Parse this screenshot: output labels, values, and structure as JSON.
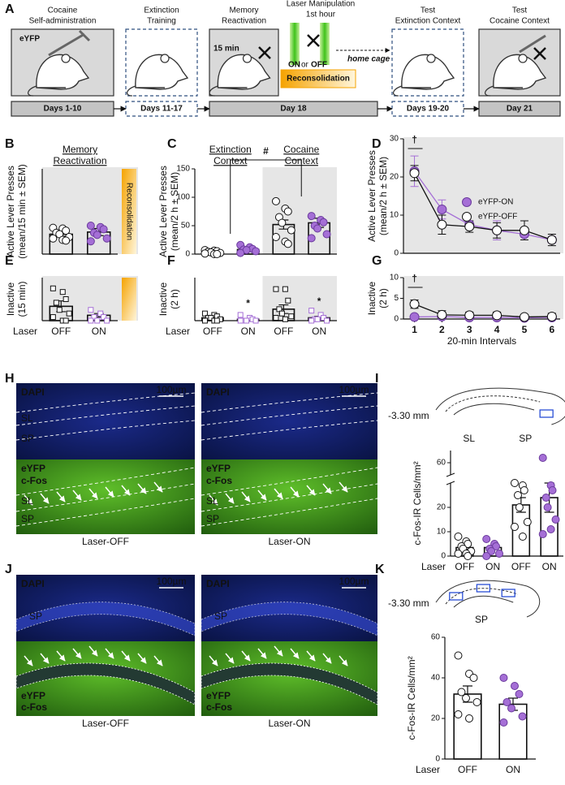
{
  "panel_labels": [
    "A",
    "B",
    "C",
    "D",
    "E",
    "F",
    "G",
    "H",
    "I",
    "J",
    "K"
  ],
  "diagram": {
    "steps": [
      {
        "title": [
          "Cocaine",
          "Self-administration"
        ],
        "days": "Days 1-10"
      },
      {
        "title": [
          "Extinction",
          "Training"
        ],
        "days": "Days 11-17"
      },
      {
        "title": [
          "Memory",
          "Reactivation"
        ],
        "days": "Day 18"
      },
      {
        "title": [
          "Test",
          "Extinction Context"
        ],
        "days": "Days 19-20"
      },
      {
        "title": [
          "Test",
          "Cocaine Context"
        ],
        "days": "Day 21"
      }
    ],
    "eyfp": "eYFP",
    "duration": "15 min",
    "laser_title": "Laser Manipulation",
    "laser_sub": "1st hour",
    "on": "ON",
    "or": "or",
    "off": "OFF",
    "home": "home cage",
    "recon": "Reconsolidation"
  },
  "chart_data": [
    {
      "type": "bar",
      "title": [
        "Memory",
        "Reactivation"
      ],
      "ylabel": [
        "Active Lever Presses",
        "(mean/15 min ± SEM)"
      ],
      "categories": [
        null,
        null
      ],
      "values": [
        28,
        31
      ],
      "errors": [
        3,
        5
      ],
      "points": [
        [
          37,
          36,
          33,
          30,
          28,
          24,
          22,
          20,
          19
        ],
        [
          40,
          38,
          35,
          30,
          27,
          22,
          18
        ]
      ],
      "point_colors": [
        "#ffffff",
        "#a56fd6"
      ],
      "marker": "circle",
      "ylim": [
        0,
        120
      ],
      "background": "#e6e6e6",
      "band": true,
      "annotation": "Reconsolidation"
    },
    {
      "type": "bar",
      "ylabel": [
        "Active Lever Presses",
        "(mean/2 h ± SEM)"
      ],
      "categories": [
        null,
        null,
        null,
        null
      ],
      "groups": [
        [
          "Extinction",
          "Context"
        ],
        [
          "Cocaine",
          "Context"
        ]
      ],
      "values": [
        3,
        8,
        52,
        55
      ],
      "errors": [
        1,
        3,
        8,
        8
      ],
      "points": [
        [
          7,
          6,
          5,
          4,
          3,
          2,
          1,
          0,
          0
        ],
        [
          16,
          12,
          9,
          8,
          7,
          5,
          2
        ],
        [
          93,
          80,
          75,
          65,
          55,
          42,
          30,
          22,
          18
        ],
        [
          67,
          60,
          56,
          50,
          45,
          35,
          28
        ]
      ],
      "point_colors": [
        "#ffffff",
        "#a56fd6",
        "#ffffff",
        "#a56fd6"
      ],
      "marker": "circle",
      "ylim": [
        0,
        150
      ],
      "yticks": [
        0,
        50,
        100,
        150
      ],
      "shaded": [
        2,
        3
      ],
      "shade_color": "#e6e6e6",
      "bracket": "#"
    },
    {
      "type": "line",
      "ylabel": [
        "Active Lever Presses",
        "(mean/2 h ± SEM)"
      ],
      "x": [
        1,
        2,
        3,
        4,
        5,
        6
      ],
      "xlim": [
        0.6,
        6.3
      ],
      "ylim": [
        0,
        30
      ],
      "yticks": [
        0,
        10,
        20,
        30
      ],
      "background": "#e6e6e6",
      "annotation": "†",
      "legend": "upper right",
      "series": [
        {
          "name": "eYFP-ON",
          "color": "#a56fd6",
          "values": [
            21.5,
            11.5,
            7.5,
            6,
            5,
            3.5
          ],
          "errors": [
            4,
            2.5,
            1,
            2.5,
            1.5,
            0.8
          ]
        },
        {
          "name": "eYFP-OFF",
          "color": "#ffffff",
          "values": [
            21,
            7.5,
            7,
            6,
            6,
            3.5
          ],
          "errors": [
            2,
            2.5,
            1.5,
            2,
            2.5,
            1.5
          ]
        }
      ]
    },
    {
      "type": "bar",
      "ylabel": [
        "Inactive",
        "(15 min)"
      ],
      "xlabel": "Laser",
      "categories": [
        "OFF",
        "ON"
      ],
      "values": [
        4,
        1.5
      ],
      "errors": [
        1.5,
        0.5
      ],
      "points": [
        [
          9,
          8,
          6,
          5,
          3,
          2,
          1,
          0,
          0
        ],
        [
          3,
          2,
          1,
          1,
          0,
          0,
          0
        ]
      ],
      "point_colors": [
        "#ffffff",
        "#a56fd6"
      ],
      "marker": "square",
      "ylim": [
        0,
        12
      ],
      "background": "#e6e6e6",
      "band": true
    },
    {
      "type": "bar",
      "ylabel": [
        "Inactive",
        "(2 h)"
      ],
      "xlabel": "Laser",
      "categories": [
        "OFF",
        "ON",
        "OFF",
        "ON"
      ],
      "values": [
        2,
        1,
        8,
        2
      ],
      "errors": [
        0.6,
        0.6,
        3,
        1
      ],
      "points": [
        [
          5,
          4,
          3,
          2,
          2,
          1,
          0,
          0,
          0
        ],
        [
          4,
          2,
          1,
          0,
          0,
          0,
          0
        ],
        [
          22,
          22,
          14,
          8,
          5,
          3,
          2,
          1
        ],
        [
          7,
          4,
          2,
          1,
          1,
          0,
          0
        ]
      ],
      "point_colors": [
        "#ffffff",
        "#a56fd6",
        "#ffffff",
        "#a56fd6"
      ],
      "marker": "square",
      "ylim": [
        0,
        30
      ],
      "shaded": [
        2,
        3
      ],
      "shade_color": "#e6e6e6",
      "significance": [
        null,
        "*",
        null,
        "*"
      ]
    },
    {
      "type": "line",
      "ylabel": [
        "Inactive",
        "(2 h)"
      ],
      "xlabel": "20-min Intervals",
      "x": [
        1,
        2,
        3,
        4,
        5,
        6
      ],
      "xlim": [
        0.6,
        6.3
      ],
      "xticks": [
        1,
        2,
        3,
        4,
        5,
        6
      ],
      "ylim": [
        0,
        10
      ],
      "yticks": [
        0,
        5,
        10
      ],
      "background": "#e6e6e6",
      "annotation": "†",
      "series": [
        {
          "color": "#a56fd6",
          "values": [
            0.5,
            0.6,
            0.4,
            0.4,
            0.3,
            0.4
          ],
          "errors": [
            0.3,
            0.3,
            0.3,
            0.3,
            0.3,
            0.3
          ]
        },
        {
          "color": "#ffffff",
          "values": [
            3.6,
            1,
            0.9,
            0.9,
            0.5,
            0.6
          ],
          "errors": [
            1,
            1,
            0.8,
            0.8,
            0.5,
            0.8
          ]
        }
      ]
    },
    {
      "type": "bar",
      "ylabel": "c-Fos-IR Cells/mm²",
      "xlabel": "Laser",
      "section": "-3.30 mm",
      "categories": [
        "OFF",
        "ON",
        "OFF",
        "ON"
      ],
      "groups": [
        "SL",
        "SP"
      ],
      "values": [
        3.5,
        3.5,
        21,
        24
      ],
      "errors": [
        0.8,
        0.8,
        3,
        6
      ],
      "points": [
        [
          8,
          6,
          5,
          4,
          3,
          2,
          1,
          1,
          0
        ],
        [
          7,
          5,
          4,
          3,
          2,
          1,
          0
        ],
        [
          30,
          29,
          27,
          25,
          20,
          14,
          12,
          8
        ],
        [
          62,
          29,
          27,
          24,
          20,
          15,
          9,
          11
        ]
      ],
      "point_colors": [
        "#ffffff",
        "#a56fd6",
        "#ffffff",
        "#a56fd6"
      ],
      "marker": "circle",
      "ylim": [
        0,
        65
      ],
      "ybreak": [
        30,
        55
      ],
      "yticks": [
        0,
        10,
        20,
        60
      ]
    },
    {
      "type": "bar",
      "ylabel": "c-Fos-IR Cells/mm²",
      "xlabel": "Laser",
      "section": "-3.30 mm",
      "region": "SP",
      "categories": [
        "OFF",
        "ON"
      ],
      "values": [
        32,
        27
      ],
      "errors": [
        4,
        3
      ],
      "points": [
        [
          51,
          42,
          40,
          33,
          30,
          28,
          22,
          20
        ],
        [
          40,
          36,
          32,
          28,
          25,
          21,
          18
        ]
      ],
      "point_colors": [
        "#ffffff",
        "#a56fd6"
      ],
      "marker": "circle",
      "ylim": [
        0,
        60
      ],
      "yticks": [
        0,
        20,
        40,
        60
      ]
    }
  ],
  "micrographs": [
    {
      "top_label": "DAPI",
      "scale": "100µm",
      "top_layers": [
        "SL",
        "SP"
      ],
      "bottom_labels": [
        "eYFP",
        "c-Fos"
      ],
      "bottom_layers": [
        "SL",
        "SP"
      ],
      "caption": "Laser-OFF"
    },
    {
      "top_label": "DAPI",
      "scale": "100µm",
      "top_layers": [],
      "bottom_labels": [
        "eYFP",
        "c-Fos"
      ],
      "bottom_layers": [
        "SL",
        "SP"
      ],
      "caption": "Laser-ON"
    },
    {
      "top_label": "DAPI",
      "scale": "100µm",
      "top_layers": [
        "SP"
      ],
      "bottom_labels": [
        "eYFP",
        "c-Fos"
      ],
      "bottom_layers": [],
      "caption": "Laser-OFF"
    },
    {
      "top_label": "DAPI",
      "scale": "100µm",
      "top_layers": [
        "SP"
      ],
      "bottom_labels": [
        "eYFP",
        "c-Fos"
      ],
      "bottom_layers": [],
      "caption": "Laser-ON"
    }
  ]
}
